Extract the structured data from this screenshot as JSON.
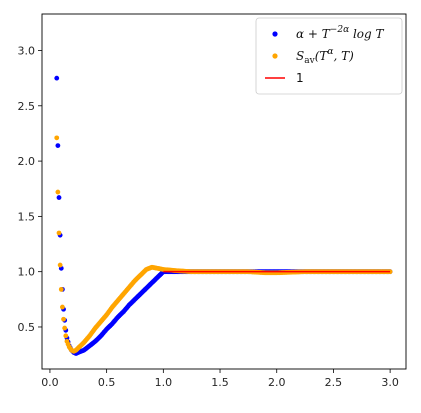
{
  "chart_data": {
    "type": "scatter",
    "title": "",
    "xlabel": "",
    "ylabel": "",
    "xlim": [
      -0.07,
      3.14
    ],
    "ylim": [
      0.12,
      3.33
    ],
    "x_ticks": [
      0.0,
      0.5,
      1.0,
      1.5,
      2.0,
      2.5,
      3.0
    ],
    "x_tick_labels": [
      "0.0",
      "0.5",
      "1.0",
      "1.5",
      "2.0",
      "2.5",
      "3.0"
    ],
    "y_ticks": [
      0.5,
      1.0,
      1.5,
      2.0,
      2.5,
      3.0
    ],
    "y_tick_labels": [
      "0.5",
      "1.0",
      "1.5",
      "2.0",
      "2.5",
      "3.0"
    ],
    "grid": false,
    "legend_position": "top-right",
    "series": [
      {
        "name": "α + T^{−2α} log T",
        "legend_main": "α + T",
        "legend_sup": "−2α",
        "legend_tail": " log T",
        "kind": "scatter",
        "color": "#0000ff",
        "points": [
          [
            0.06,
            2.75
          ],
          [
            0.07,
            2.14
          ],
          [
            0.08,
            1.67
          ],
          [
            0.09,
            1.33
          ],
          [
            0.1,
            1.03
          ],
          [
            0.11,
            0.84
          ],
          [
            0.12,
            0.66
          ],
          [
            0.13,
            0.56
          ],
          [
            0.14,
            0.47
          ],
          [
            0.15,
            0.4
          ],
          [
            0.17,
            0.33
          ],
          [
            0.19,
            0.29
          ],
          [
            0.21,
            0.27
          ],
          [
            0.23,
            0.26
          ],
          [
            0.25,
            0.27
          ],
          [
            0.3,
            0.29
          ],
          [
            0.35,
            0.33
          ],
          [
            0.4,
            0.37
          ],
          [
            0.45,
            0.42
          ],
          [
            0.5,
            0.48
          ],
          [
            0.55,
            0.53
          ],
          [
            0.6,
            0.59
          ],
          [
            0.65,
            0.64
          ],
          [
            0.7,
            0.7
          ],
          [
            0.75,
            0.75
          ],
          [
            0.8,
            0.8
          ],
          [
            0.85,
            0.85
          ],
          [
            0.9,
            0.9
          ],
          [
            0.95,
            0.95
          ],
          [
            1.0,
            1.0
          ],
          [
            1.1,
            1.0
          ],
          [
            1.25,
            1.0
          ],
          [
            1.5,
            1.0
          ],
          [
            1.75,
            1.0
          ],
          [
            2.0,
            1.0
          ],
          [
            2.25,
            1.0
          ],
          [
            2.5,
            1.0
          ],
          [
            2.75,
            1.0
          ],
          [
            3.0,
            1.0
          ]
        ]
      },
      {
        "name": "S_av(T^α, T)",
        "legend_main": "S",
        "legend_sub": "av",
        "legend_mid": "(T",
        "legend_sup": "α",
        "legend_tail": ", T)",
        "kind": "scatter",
        "color": "#ffa500",
        "points": [
          [
            0.06,
            2.21
          ],
          [
            0.07,
            1.72
          ],
          [
            0.08,
            1.35
          ],
          [
            0.09,
            1.06
          ],
          [
            0.1,
            0.84
          ],
          [
            0.11,
            0.68
          ],
          [
            0.12,
            0.57
          ],
          [
            0.13,
            0.49
          ],
          [
            0.14,
            0.42
          ],
          [
            0.15,
            0.37
          ],
          [
            0.17,
            0.32
          ],
          [
            0.19,
            0.29
          ],
          [
            0.21,
            0.28
          ],
          [
            0.23,
            0.29
          ],
          [
            0.25,
            0.31
          ],
          [
            0.3,
            0.36
          ],
          [
            0.35,
            0.42
          ],
          [
            0.4,
            0.49
          ],
          [
            0.45,
            0.55
          ],
          [
            0.5,
            0.61
          ],
          [
            0.55,
            0.68
          ],
          [
            0.6,
            0.74
          ],
          [
            0.65,
            0.8
          ],
          [
            0.7,
            0.86
          ],
          [
            0.75,
            0.92
          ],
          [
            0.8,
            0.97
          ],
          [
            0.85,
            1.02
          ],
          [
            0.9,
            1.04
          ],
          [
            0.95,
            1.03
          ],
          [
            1.0,
            1.02
          ],
          [
            1.1,
            1.01
          ],
          [
            1.25,
            1.0
          ],
          [
            1.5,
            1.0
          ],
          [
            1.75,
            1.0
          ],
          [
            1.9,
            0.99
          ],
          [
            2.0,
            0.99
          ],
          [
            2.25,
            1.0
          ],
          [
            2.5,
            1.0
          ],
          [
            2.75,
            1.0
          ],
          [
            3.0,
            1.0
          ]
        ]
      },
      {
        "name": "1",
        "kind": "line",
        "color": "#ff0000",
        "points": [
          [
            1.0,
            1.0
          ],
          [
            3.0,
            1.0
          ]
        ]
      }
    ]
  }
}
